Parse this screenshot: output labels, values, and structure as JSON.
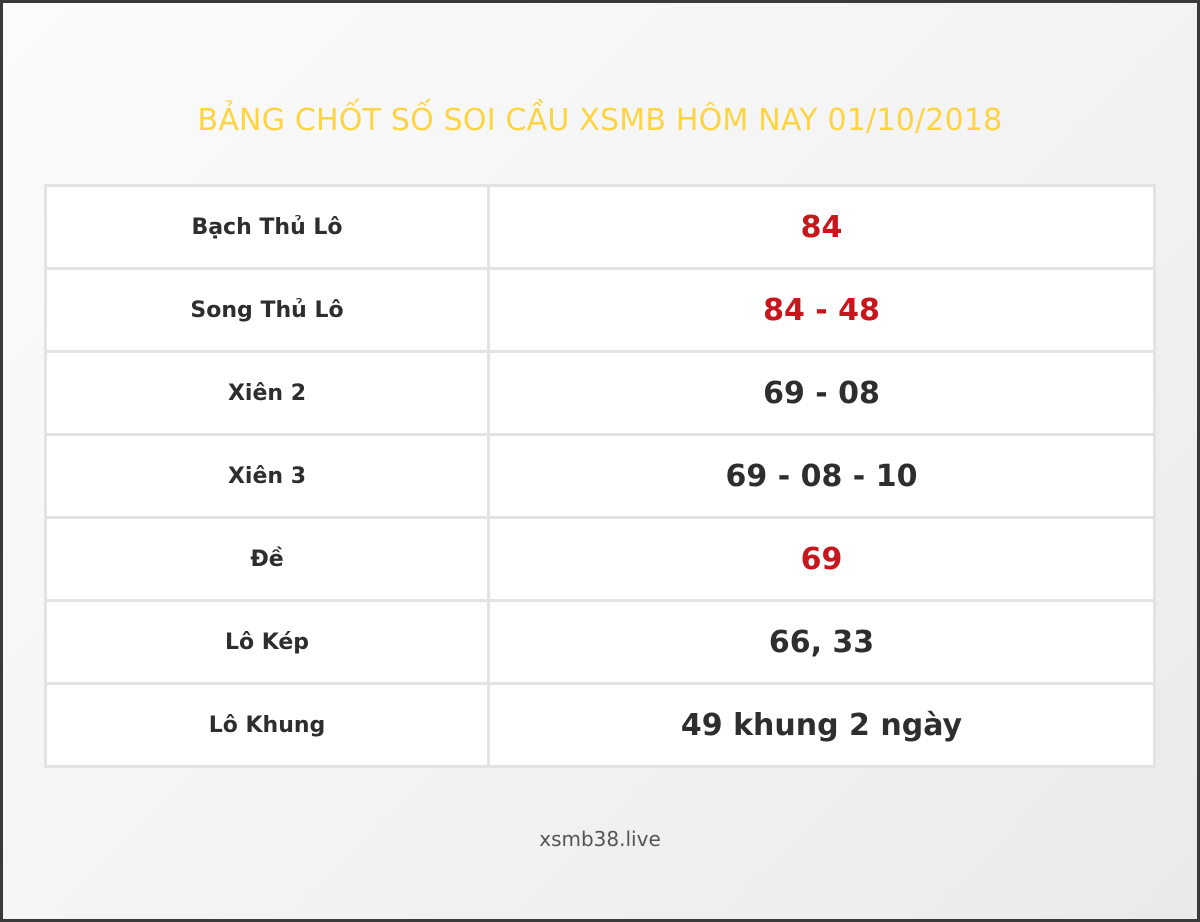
{
  "title": "BẢNG CHỐT SỐ SOI CẦU XSMB HÔM NAY 01/10/2018",
  "rows": [
    {
      "label": "Bạch Thủ Lô",
      "value": "84",
      "highlight": true
    },
    {
      "label": "Song Thủ Lô",
      "value": "84 - 48",
      "highlight": true
    },
    {
      "label": "Xiên 2",
      "value": "69 - 08",
      "highlight": false
    },
    {
      "label": "Xiên 3",
      "value": "69 - 08 - 10",
      "highlight": false
    },
    {
      "label": "Đề",
      "value": "69",
      "highlight": true
    },
    {
      "label": "Lô Kép",
      "value": "66, 33",
      "highlight": false
    },
    {
      "label": "Lô Khung",
      "value": "49 khung 2 ngày",
      "highlight": false
    }
  ],
  "footer": "xsmb38.live",
  "colors": {
    "title": "#fdd442",
    "highlight": "#c8161d",
    "text": "#2e2e2e"
  }
}
